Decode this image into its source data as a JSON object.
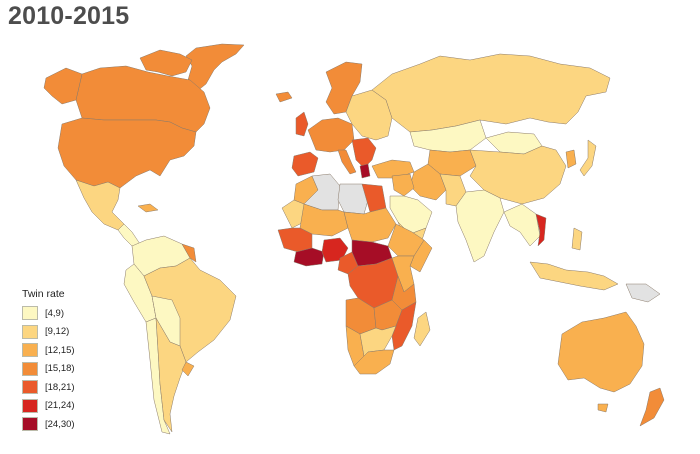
{
  "title": "2010-2015",
  "legend": {
    "title": "Twin rate",
    "bins": [
      {
        "label": "[4,9)",
        "color": "#fdf8c2"
      },
      {
        "label": "[9,12)",
        "color": "#fcd681"
      },
      {
        "label": "[12,15)",
        "color": "#f9b04f"
      },
      {
        "label": "[15,18)",
        "color": "#f28c38"
      },
      {
        "label": "[18,21)",
        "color": "#ea5a2a"
      },
      {
        "label": "[21,24)",
        "color": "#d7261f"
      },
      {
        "label": "[24,30)",
        "color": "#a60d26"
      }
    ]
  },
  "no_data_color": "#e2e2e2",
  "ocean_color": "#ffffff"
}
